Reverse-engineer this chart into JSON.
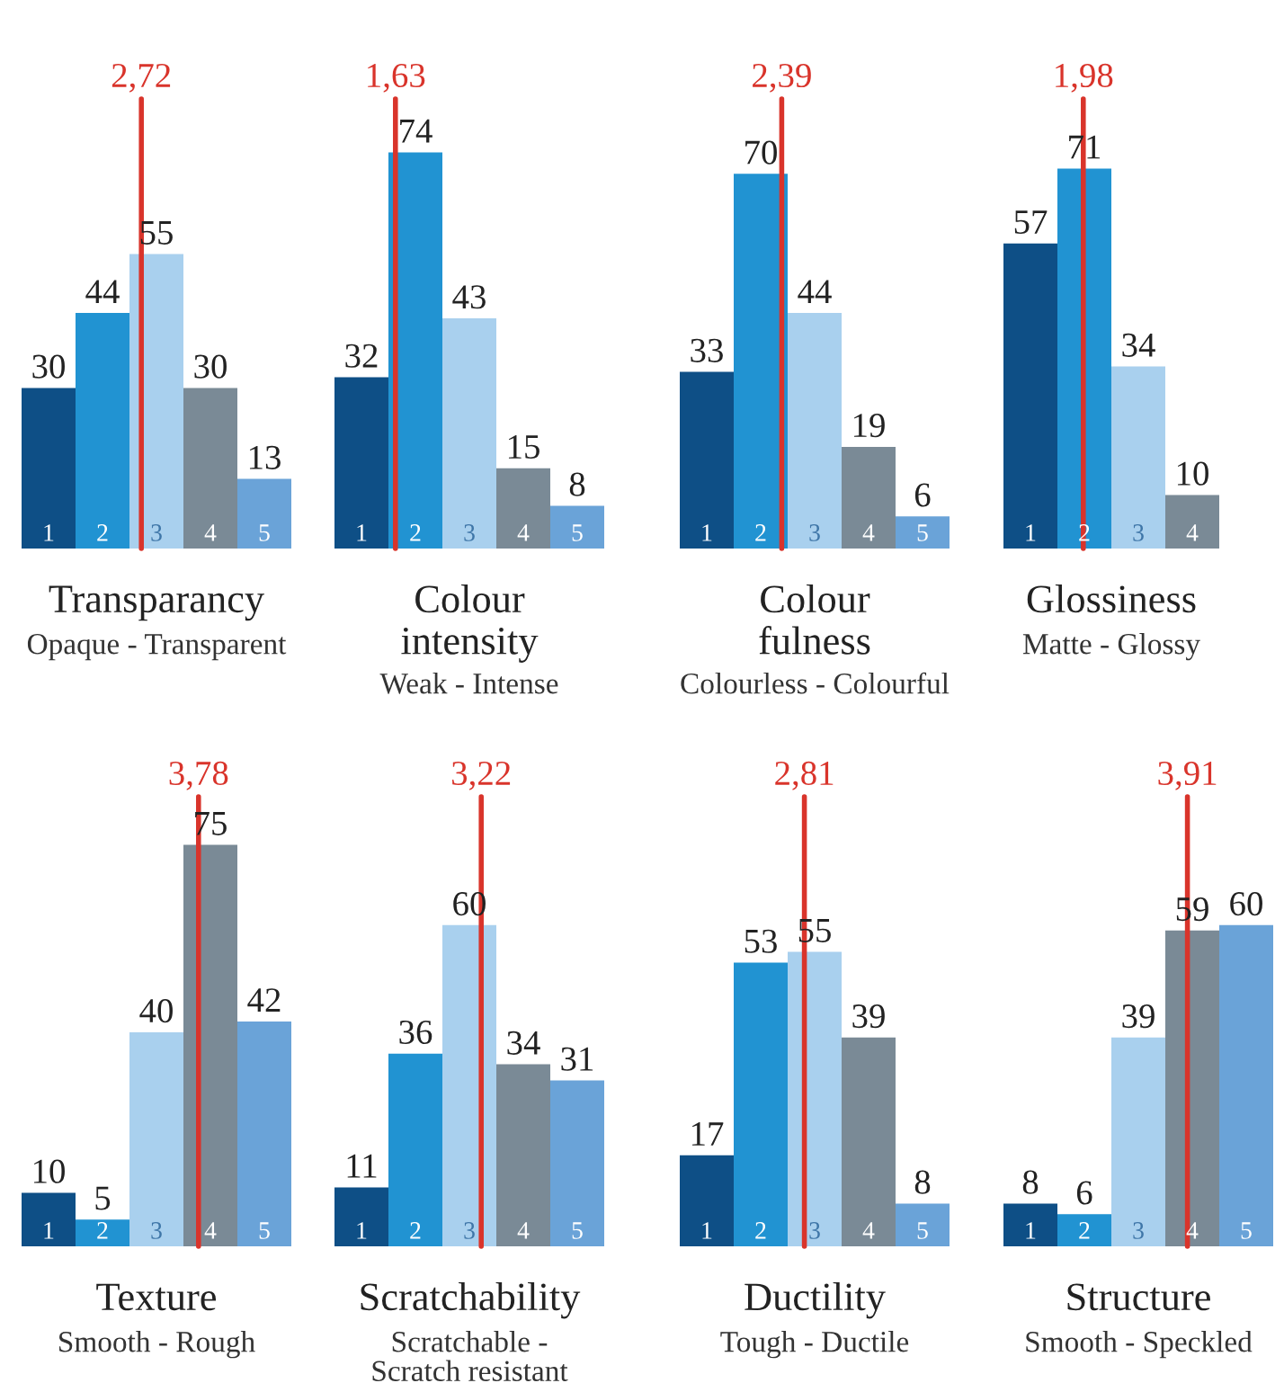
{
  "chart_data": [
    {
      "type": "bar",
      "title": "Transparancy",
      "subtitle": "Opaque - Transparent",
      "x": [
        1,
        2,
        3,
        4,
        5
      ],
      "xlim": [
        0.5,
        5.5
      ],
      "xticks": [
        1,
        2,
        3,
        4,
        5
      ],
      "values": [
        30,
        44,
        55,
        30,
        13
      ],
      "colors": [
        "#0e4f86",
        "#2193d2",
        "#a9d0ee",
        "#7a8a96",
        "#6aa3d8"
      ],
      "data_labels": true,
      "ref_lines": [
        {
          "axis": "x",
          "value": 2.72,
          "label": "2,72",
          "color": "#d9342b"
        }
      ],
      "grid": false
    },
    {
      "type": "bar",
      "title": "Colour\nintensity",
      "subtitle": "Weak - Intense",
      "x": [
        1,
        2,
        3,
        4,
        5
      ],
      "xlim": [
        0.5,
        5.5
      ],
      "xticks": [
        1,
        2,
        3,
        4,
        5
      ],
      "values": [
        32,
        74,
        43,
        15,
        8
      ],
      "colors": [
        "#0e4f86",
        "#2193d2",
        "#a9d0ee",
        "#7a8a96",
        "#6aa3d8"
      ],
      "data_labels": true,
      "ref_lines": [
        {
          "axis": "x",
          "value": 1.63,
          "label": "1,63",
          "color": "#d9342b"
        }
      ],
      "grid": false
    },
    {
      "type": "bar",
      "title": "Colour\nfulness",
      "subtitle": "Colourless - Colourful",
      "x": [
        1,
        2,
        3,
        4,
        5
      ],
      "xlim": [
        0.5,
        5.5
      ],
      "xticks": [
        1,
        2,
        3,
        4,
        5
      ],
      "values": [
        33,
        70,
        44,
        19,
        6
      ],
      "colors": [
        "#0e4f86",
        "#2193d2",
        "#a9d0ee",
        "#7a8a96",
        "#6aa3d8"
      ],
      "data_labels": true,
      "ref_lines": [
        {
          "axis": "x",
          "value": 2.39,
          "label": "2,39",
          "color": "#d9342b"
        }
      ],
      "grid": false
    },
    {
      "type": "bar",
      "title": "Glossiness",
      "subtitle": "Matte - Glossy",
      "x": [
        1,
        2,
        3,
        4
      ],
      "xlim": [
        0.5,
        4.5
      ],
      "xticks": [
        1,
        2,
        3,
        4
      ],
      "values": [
        57,
        71,
        34,
        10
      ],
      "colors": [
        "#0e4f86",
        "#2193d2",
        "#a9d0ee",
        "#7a8a96"
      ],
      "data_labels": true,
      "ref_lines": [
        {
          "axis": "x",
          "value": 1.98,
          "label": "1,98",
          "color": "#d9342b"
        }
      ],
      "grid": false
    },
    {
      "type": "bar",
      "title": "Texture",
      "subtitle": "Smooth - Rough",
      "x": [
        1,
        2,
        3,
        4,
        5
      ],
      "xlim": [
        0.5,
        5.5
      ],
      "xticks": [
        1,
        2,
        3,
        4,
        5
      ],
      "values": [
        10,
        5,
        40,
        75,
        42
      ],
      "colors": [
        "#0e4f86",
        "#2193d2",
        "#a9d0ee",
        "#7a8a96",
        "#6aa3d8"
      ],
      "data_labels": true,
      "ref_lines": [
        {
          "axis": "x",
          "value": 3.78,
          "label": "3,78",
          "color": "#d9342b"
        }
      ],
      "grid": false
    },
    {
      "type": "bar",
      "title": "Scratchability",
      "subtitle": "Scratchable -\nScratch resistant",
      "x": [
        1,
        2,
        3,
        4,
        5
      ],
      "xlim": [
        0.5,
        5.5
      ],
      "xticks": [
        1,
        2,
        3,
        4,
        5
      ],
      "values": [
        11,
        36,
        60,
        34,
        31
      ],
      "colors": [
        "#0e4f86",
        "#2193d2",
        "#a9d0ee",
        "#7a8a96",
        "#6aa3d8"
      ],
      "data_labels": true,
      "ref_lines": [
        {
          "axis": "x",
          "value": 3.22,
          "label": "3,22",
          "color": "#d9342b"
        }
      ],
      "grid": false
    },
    {
      "type": "bar",
      "title": "Ductility",
      "subtitle": "Tough - Ductile",
      "x": [
        1,
        2,
        3,
        4,
        5
      ],
      "xlim": [
        0.5,
        5.5
      ],
      "xticks": [
        1,
        2,
        3,
        4,
        5
      ],
      "values": [
        17,
        53,
        55,
        39,
        8
      ],
      "colors": [
        "#0e4f86",
        "#2193d2",
        "#a9d0ee",
        "#7a8a96",
        "#6aa3d8"
      ],
      "data_labels": true,
      "ref_lines": [
        {
          "axis": "x",
          "value": 2.81,
          "label": "2,81",
          "color": "#d9342b"
        }
      ],
      "grid": false
    },
    {
      "type": "bar",
      "title": "Structure",
      "subtitle": "Smooth - Speckled",
      "x": [
        1,
        2,
        3,
        4,
        5
      ],
      "xlim": [
        0.5,
        5.5
      ],
      "xticks": [
        1,
        2,
        3,
        4,
        5
      ],
      "values": [
        8,
        6,
        39,
        59,
        60
      ],
      "colors": [
        "#0e4f86",
        "#2193d2",
        "#a9d0ee",
        "#7a8a96",
        "#6aa3d8"
      ],
      "data_labels": true,
      "ref_lines": [
        {
          "axis": "x",
          "value": 3.91,
          "label": "3,91",
          "color": "#d9342b"
        }
      ],
      "grid": false
    }
  ]
}
